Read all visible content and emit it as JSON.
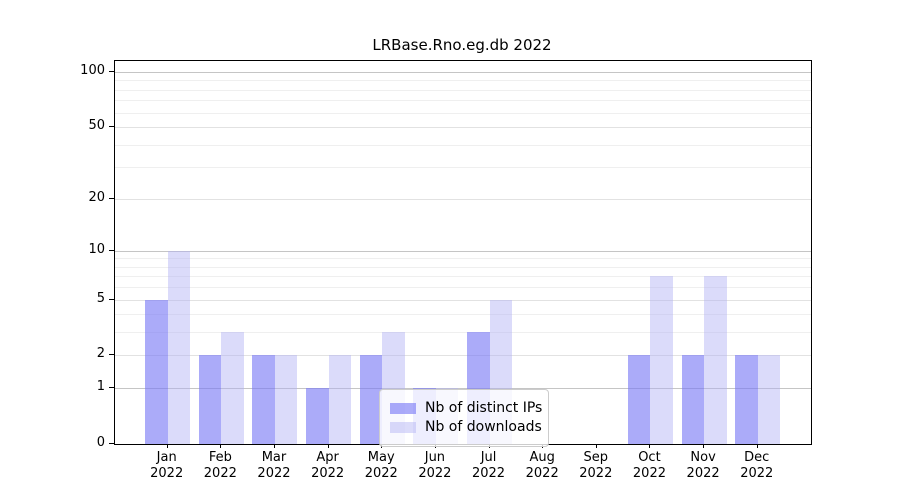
{
  "chart_data": {
    "type": "bar",
    "title": "LRBase.Rno.eg.db 2022",
    "x": {
      "months": [
        "Jan",
        "Feb",
        "Mar",
        "Apr",
        "May",
        "Jun",
        "Jul",
        "Aug",
        "Sep",
        "Oct",
        "Nov",
        "Dec"
      ],
      "year": "2022"
    },
    "categories": [
      "Jan 2022",
      "Feb 2022",
      "Mar 2022",
      "Apr 2022",
      "May 2022",
      "Jun 2022",
      "Jul 2022",
      "Aug 2022",
      "Sep 2022",
      "Oct 2022",
      "Nov 2022",
      "Dec 2022"
    ],
    "series": [
      {
        "name": "Nb of distinct IPs",
        "color": "rgba(120,120,245,0.62)",
        "values": [
          5,
          2,
          2,
          1,
          2,
          1,
          3,
          0,
          0,
          2,
          2,
          2
        ]
      },
      {
        "name": "Nb of downloads",
        "color": "rgba(175,175,245,0.45)",
        "values": [
          10,
          3,
          2,
          2,
          3,
          1,
          5,
          0,
          0,
          7,
          7,
          2
        ]
      }
    ],
    "yscale": "log1p",
    "y_ticks": [
      0,
      1,
      2,
      5,
      10,
      20,
      50,
      100
    ],
    "y_minor_ticks": [
      3,
      4,
      6,
      7,
      8,
      9,
      30,
      40,
      60,
      70,
      80,
      90
    ],
    "ylim": [
      0,
      115
    ],
    "xlabel": "",
    "ylabel": "",
    "grid": true,
    "legend_position": "lower-center"
  },
  "colors": {
    "background": "#ffffff",
    "axis": "#000000",
    "grid_major": "#c5c5c5",
    "grid_labeled": "#e2e2e2",
    "grid_minor": "#efefef",
    "legend_border": "#cccccc",
    "legend_background": "rgba(255,255,255,0.8)"
  }
}
